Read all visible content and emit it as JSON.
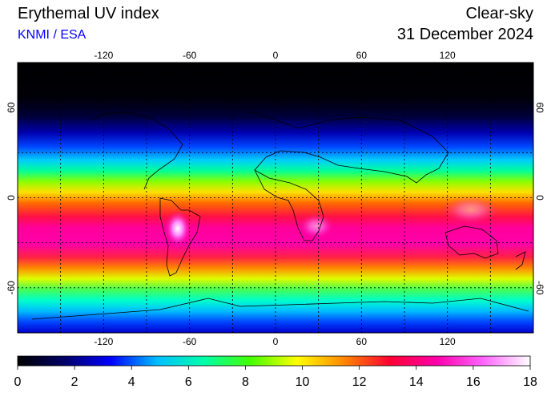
{
  "header": {
    "title": "Erythemal UV index",
    "source": "KNMI / ESA",
    "mode": "Clear-sky",
    "date": "31 December 2024"
  },
  "map": {
    "lon_ticks": [
      "-120",
      "-60",
      "0",
      "60",
      "120"
    ],
    "lat_ticks": [
      "60",
      "0",
      "-60"
    ],
    "lat_ticks_right": [
      "60",
      "0",
      "-60"
    ]
  },
  "colorbar": {
    "labels": [
      "0",
      "2",
      "4",
      "6",
      "8",
      "10",
      "12",
      "14",
      "16",
      "18"
    ],
    "colors": [
      "#000000",
      "#000066",
      "#0000ff",
      "#00bfff",
      "#00ffaa",
      "#44ff00",
      "#ffff00",
      "#ff8800",
      "#ff0033",
      "#ff00aa",
      "#ff66ff",
      "#ffffff"
    ]
  }
}
